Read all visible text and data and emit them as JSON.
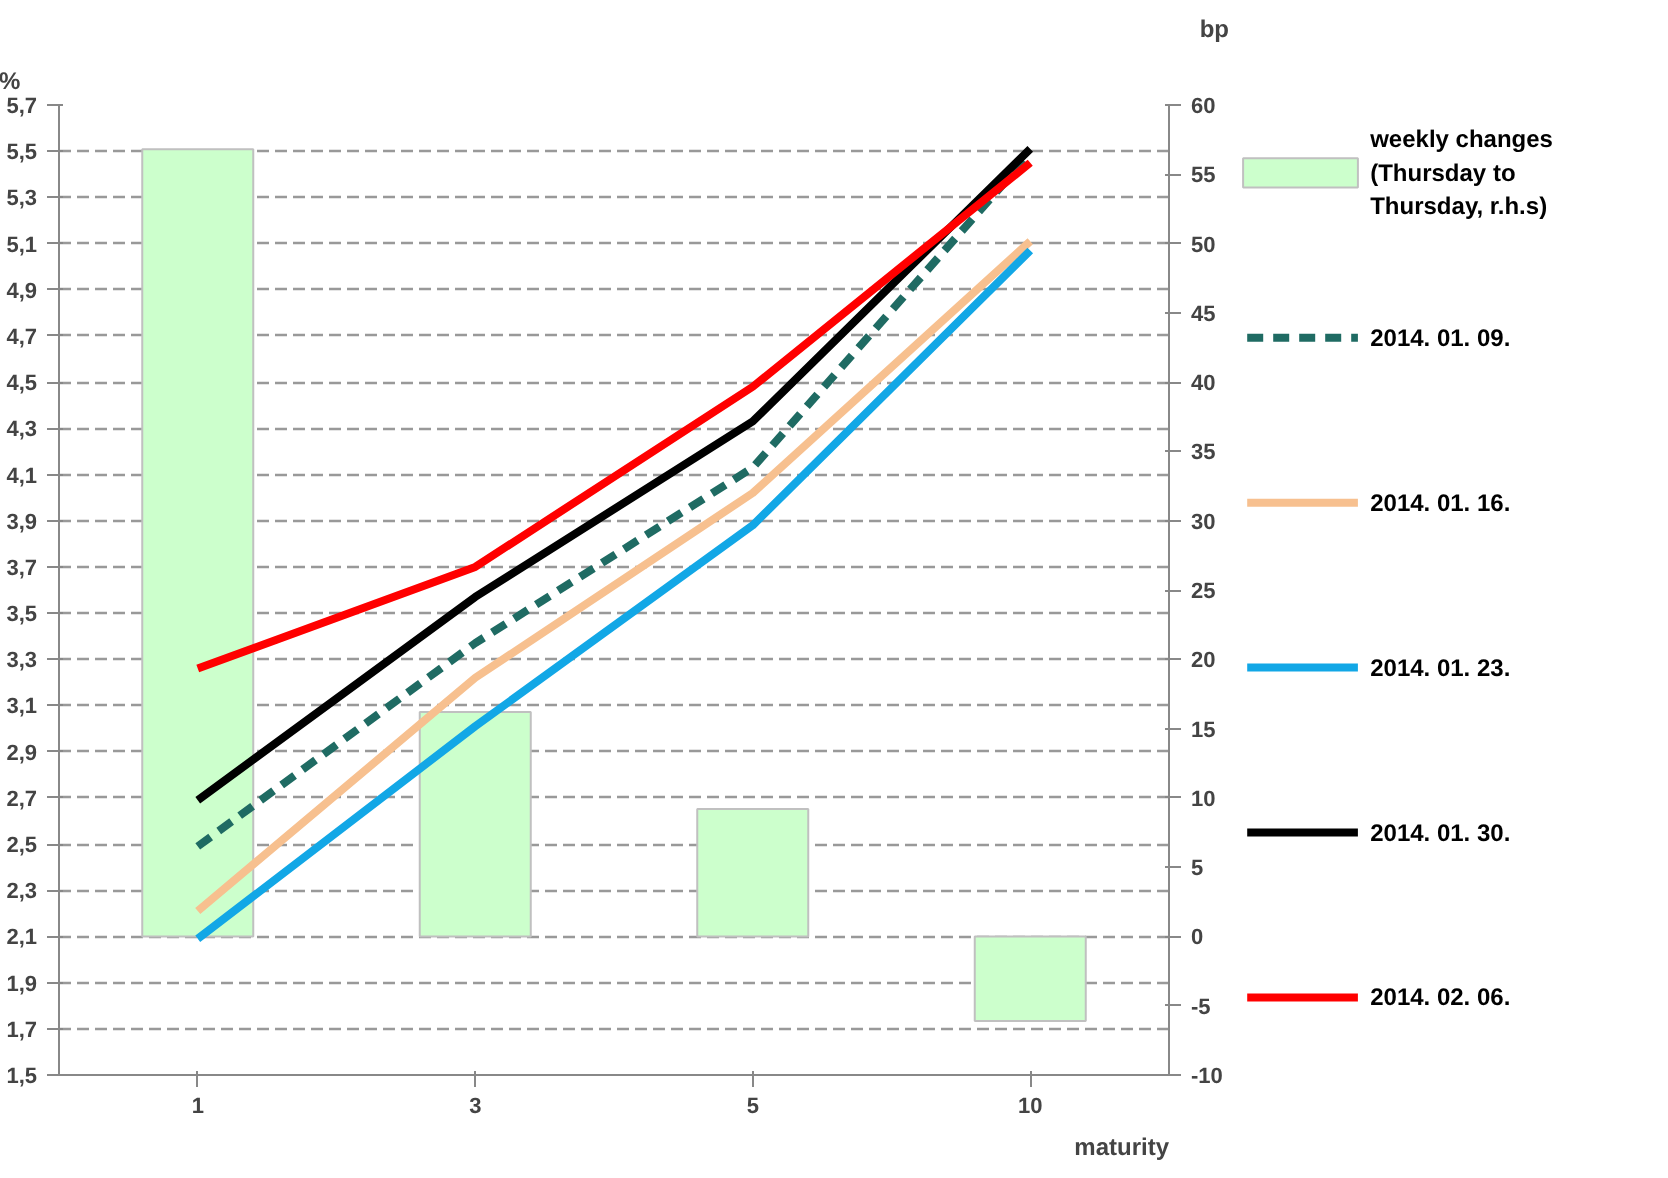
{
  "chart_data": {
    "type": "line",
    "xlabel": "maturity",
    "ylabel": "%",
    "y2label": "bp",
    "categories": [
      "1",
      "3",
      "5",
      "10"
    ],
    "series": [
      {
        "name": "weekly changes\n(Thursday to\nThursday, r.h.s)",
        "type": "bar",
        "axis": "y2",
        "color": "#ccffcc",
        "values": [
          56.8,
          16.2,
          9.2,
          -6.1
        ]
      },
      {
        "name": "2014. 01. 09.",
        "color": "#1f6b63",
        "line_style": "dashed",
        "values": [
          2.49,
          3.37,
          4.13,
          5.49
        ]
      },
      {
        "name": "2014. 01. 16.",
        "color": "#f7c08f",
        "line_style": "solid",
        "values": [
          2.21,
          3.22,
          4.02,
          5.11
        ]
      },
      {
        "name": "2014. 01. 23.",
        "color": "#12a7e6",
        "line_style": "solid",
        "values": [
          2.09,
          3.01,
          3.88,
          5.07
        ]
      },
      {
        "name": "2014. 01. 30.",
        "color": "#000000",
        "line_style": "solid",
        "values": [
          2.69,
          3.57,
          4.33,
          5.51
        ]
      },
      {
        "name": "2014. 02. 06.",
        "color": "#ff0000",
        "line_style": "solid",
        "values": [
          3.26,
          3.7,
          4.48,
          5.45
        ]
      }
    ],
    "ylim": [
      1.5,
      5.7
    ],
    "yticks": [
      {
        "value": 1.5,
        "label": "1,5"
      },
      {
        "value": 1.7,
        "label": "1,7"
      },
      {
        "value": 1.9,
        "label": "1,9"
      },
      {
        "value": 2.1,
        "label": "2,1"
      },
      {
        "value": 2.3,
        "label": "2,3"
      },
      {
        "value": 2.5,
        "label": "2,5"
      },
      {
        "value": 2.7,
        "label": "2,7"
      },
      {
        "value": 2.9,
        "label": "2,9"
      },
      {
        "value": 3.1,
        "label": "3,1"
      },
      {
        "value": 3.3,
        "label": "3,3"
      },
      {
        "value": 3.5,
        "label": "3,5"
      },
      {
        "value": 3.7,
        "label": "3,7"
      },
      {
        "value": 3.9,
        "label": "3,9"
      },
      {
        "value": 4.1,
        "label": "4,1"
      },
      {
        "value": 4.3,
        "label": "4,3"
      },
      {
        "value": 4.5,
        "label": "4,5"
      },
      {
        "value": 4.7,
        "label": "4,7"
      },
      {
        "value": 4.9,
        "label": "4,9"
      },
      {
        "value": 5.1,
        "label": "5,1"
      },
      {
        "value": 5.3,
        "label": "5,3"
      },
      {
        "value": 5.5,
        "label": "5,5"
      },
      {
        "value": 5.7,
        "label": "5,7"
      }
    ],
    "y2lim": [
      -10,
      60
    ],
    "y2ticks": [
      -10,
      -5,
      0,
      5,
      10,
      15,
      20,
      25,
      30,
      35,
      40,
      45,
      50,
      55,
      60
    ],
    "grid": "y",
    "legend": "right"
  }
}
